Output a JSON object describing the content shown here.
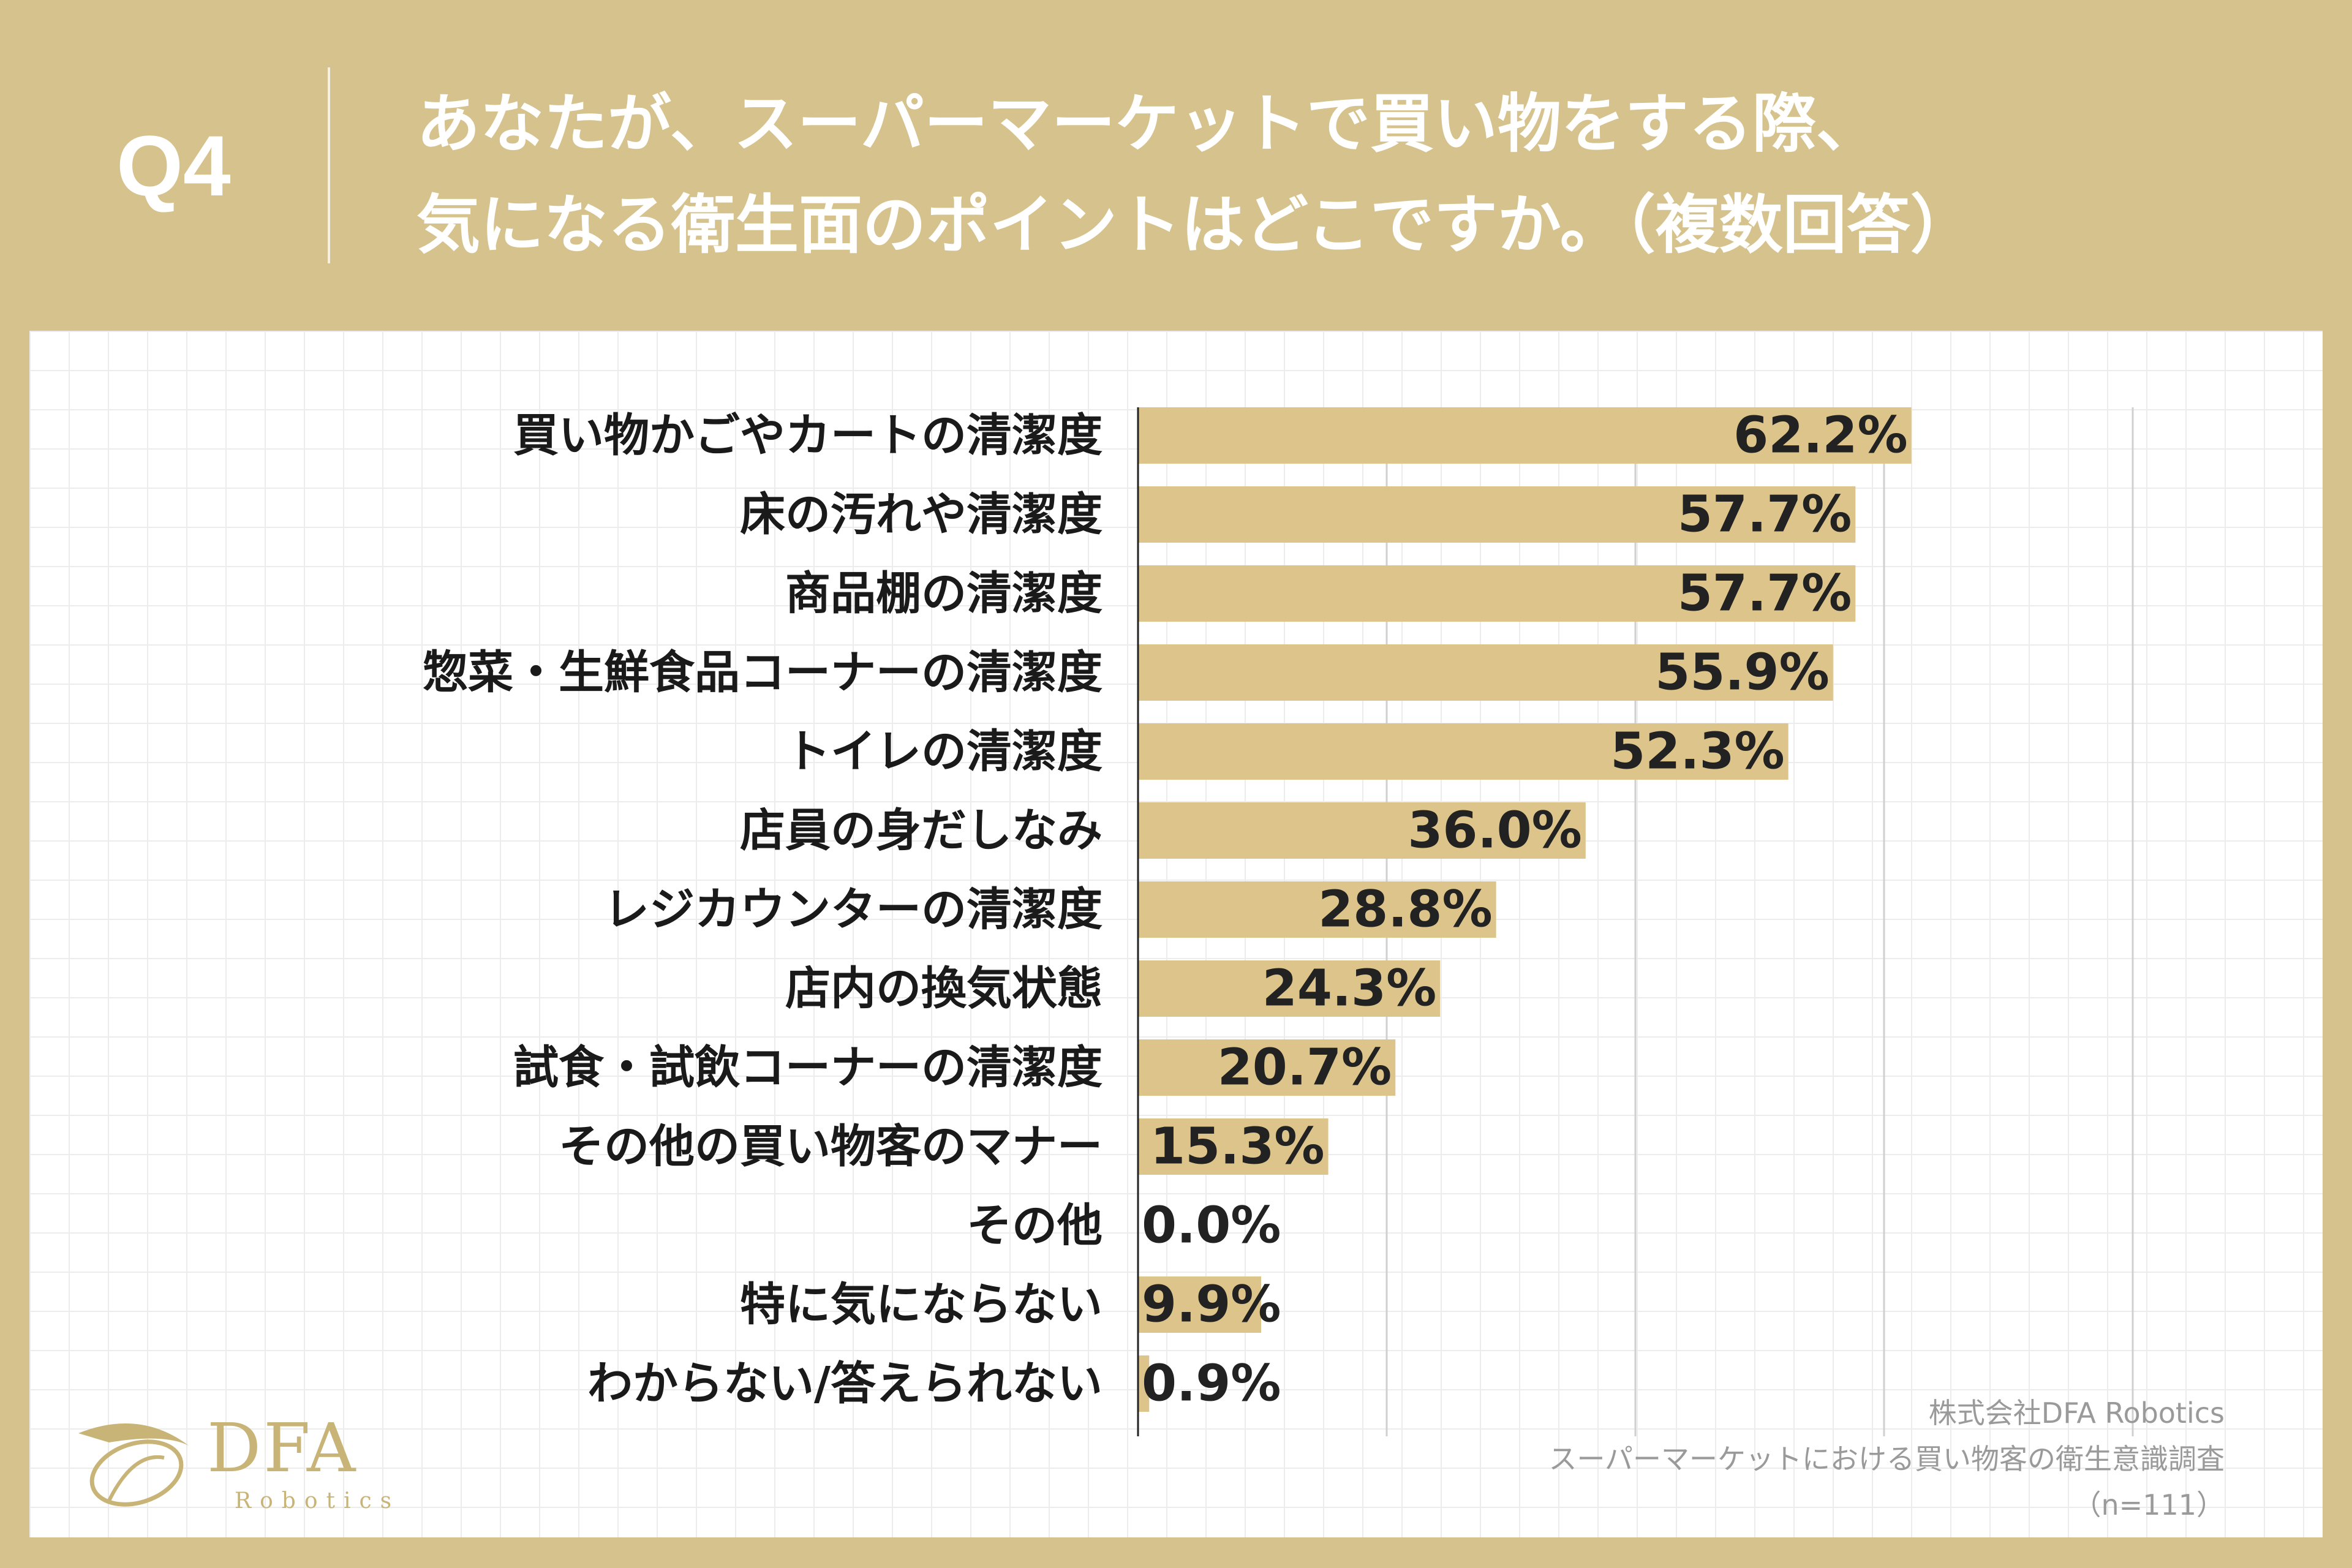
{
  "header": {
    "question": "Q4",
    "title_line1": "あなたが、スーパーマーケットで買い物をする際、",
    "title_line2": "気になる衛生面のポイントはどこですか。（複数回答）"
  },
  "colors": {
    "background": "#d6c28c",
    "bar": "#dcc48b",
    "panel": "#ffffff",
    "label_text": "#1a1a1a",
    "value_text": "#222222",
    "gridline": "#d0d0d0"
  },
  "chart_data": {
    "type": "bar",
    "orientation": "horizontal",
    "unit": "%",
    "xlim": [
      0,
      100
    ],
    "grid": true,
    "categories": [
      "買い物かごやカートの清潔度",
      "床の汚れや清潔度",
      "商品棚の清潔度",
      "惣菜・生鮮食品コーナーの清潔度",
      "トイレの清潔度",
      "店員の身だしなみ",
      "レジカウンターの清潔度",
      "店内の換気状態",
      "試食・試飲コーナーの清潔度",
      "その他の買い物客のマナー",
      "その他",
      "特に気にならない",
      "わからない/答えられない"
    ],
    "values": [
      62.2,
      57.7,
      57.7,
      55.9,
      52.3,
      36.0,
      28.8,
      24.3,
      20.7,
      15.3,
      0.0,
      9.9,
      0.9
    ],
    "value_labels": [
      "62.2%",
      "57.7%",
      "57.7%",
      "55.9%",
      "52.3%",
      "36.0%",
      "28.8%",
      "24.3%",
      "20.7%",
      "15.3%",
      "0.0%",
      "9.9%",
      "0.9%"
    ]
  },
  "logo": {
    "name": "DFA",
    "sub": "Robotics"
  },
  "source": {
    "company": "株式会社DFA Robotics",
    "survey": "スーパーマーケットにおける買い物客の衛生意識調査",
    "sample": "（n=111）"
  }
}
